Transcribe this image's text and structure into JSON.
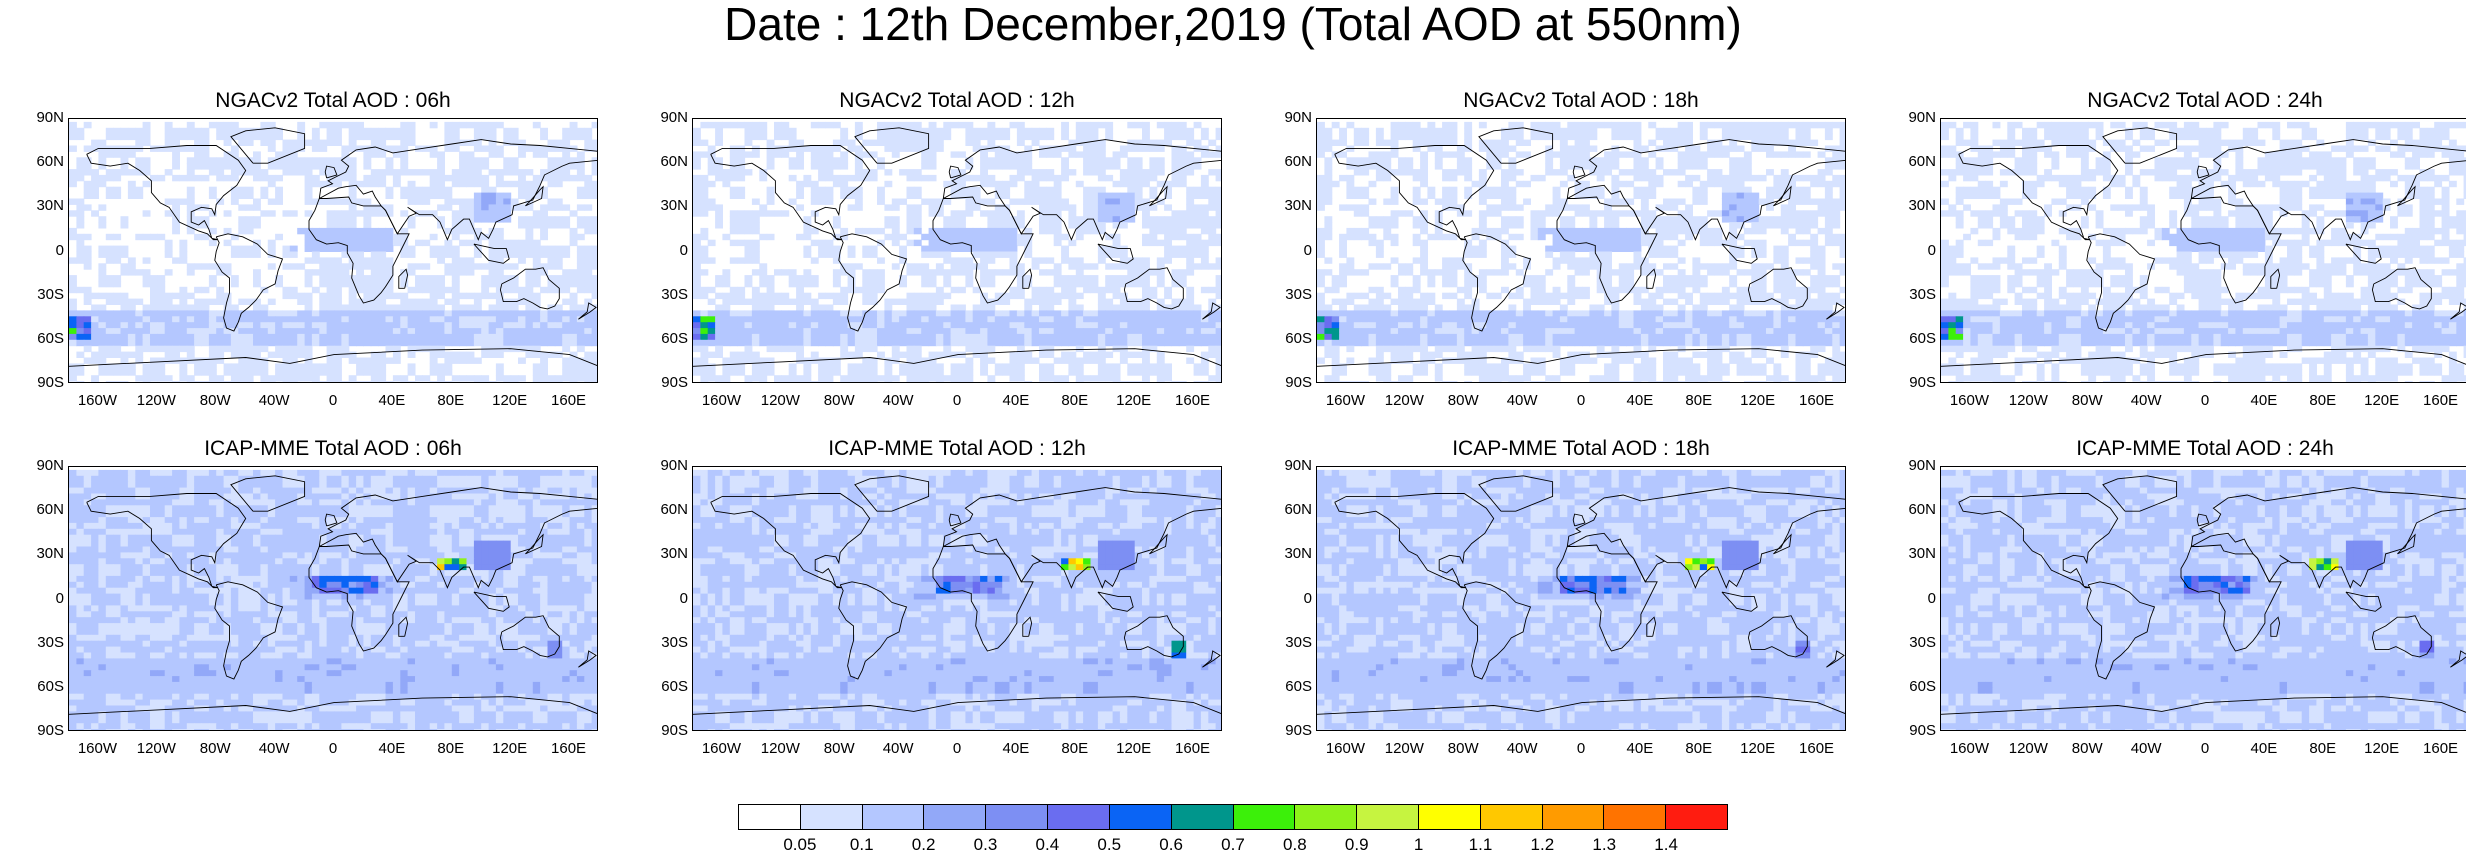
{
  "title": "Date : 12th December,2019 (Total AOD at 550nm)",
  "lat_labels": [
    "90N",
    "60N",
    "30N",
    "0",
    "30S",
    "60S",
    "90S"
  ],
  "lon_labels": [
    "160W",
    "120W",
    "80W",
    "40W",
    "0",
    "40E",
    "80E",
    "120E",
    "160E"
  ],
  "panels": [
    {
      "title": "NGACv2 Total AOD : 06h",
      "model": "NGACv2",
      "hour": "06h"
    },
    {
      "title": "NGACv2 Total AOD : 12h",
      "model": "NGACv2",
      "hour": "12h"
    },
    {
      "title": "NGACv2 Total AOD : 18h",
      "model": "NGACv2",
      "hour": "18h"
    },
    {
      "title": "NGACv2 Total AOD : 24h",
      "model": "NGACv2",
      "hour": "24h"
    },
    {
      "title": "ICAP-MME Total AOD : 06h",
      "model": "ICAP-MME",
      "hour": "06h"
    },
    {
      "title": "ICAP-MME Total AOD : 12h",
      "model": "ICAP-MME",
      "hour": "12h"
    },
    {
      "title": "ICAP-MME Total AOD : 18h",
      "model": "ICAP-MME",
      "hour": "18h"
    },
    {
      "title": "ICAP-MME Total AOD : 24h",
      "model": "ICAP-MME",
      "hour": "24h"
    }
  ],
  "colorbar": {
    "labels": [
      "0.05",
      "0.1",
      "0.2",
      "0.3",
      "0.4",
      "0.5",
      "0.6",
      "0.7",
      "0.8",
      "0.9",
      "1",
      "1.1",
      "1.2",
      "1.3",
      "1.4"
    ],
    "colors": [
      "#ffffff",
      "#d6e2ff",
      "#b4c7ff",
      "#92a8f8",
      "#7d8ff3",
      "#6a6df0",
      "#0a64f5",
      "#00968c",
      "#3cf00a",
      "#8ef21a",
      "#c6f440",
      "#ffff00",
      "#ffc800",
      "#ff9b00",
      "#ff7300",
      "#ff1c10"
    ]
  }
}
